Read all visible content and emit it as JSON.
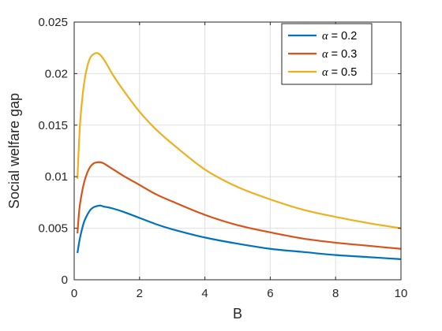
{
  "chart_data": {
    "type": "line",
    "xlabel": "B",
    "ylabel": "Social welfare gap",
    "xlim": [
      0,
      10
    ],
    "ylim": [
      0,
      0.025
    ],
    "xticks": [
      0,
      2,
      4,
      6,
      8,
      10
    ],
    "xtick_labels": [
      "0",
      "2",
      "4",
      "6",
      "8",
      "10"
    ],
    "yticks": [
      0,
      0.005,
      0.01,
      0.015,
      0.02,
      0.025
    ],
    "ytick_labels": [
      "0",
      "0.005",
      "0.01",
      "0.015",
      "0.02",
      "0.025"
    ],
    "grid": true,
    "legend_position": "top-right",
    "series": [
      {
        "name": "α = 0.2",
        "legend_symbol": "α",
        "legend_value": "= 0.2",
        "color": "#0072BD",
        "x": [
          0.1,
          0.15,
          0.2,
          0.3,
          0.4,
          0.5,
          0.6,
          0.7,
          0.8,
          0.9,
          1.0,
          1.2,
          1.5,
          2.0,
          2.5,
          3.0,
          4.0,
          5.0,
          6.0,
          7.0,
          8.0,
          9.0,
          10.0
        ],
        "y": [
          0.0026,
          0.0036,
          0.0044,
          0.0056,
          0.0063,
          0.0068,
          0.00705,
          0.00715,
          0.0072,
          0.0071,
          0.00705,
          0.0069,
          0.0066,
          0.006,
          0.0054,
          0.0049,
          0.0041,
          0.0035,
          0.003,
          0.0027,
          0.0024,
          0.0022,
          0.002
        ]
      },
      {
        "name": "α = 0.3",
        "legend_symbol": "α",
        "legend_value": "= 0.3",
        "color": "#D95319",
        "x": [
          0.1,
          0.15,
          0.2,
          0.3,
          0.4,
          0.5,
          0.6,
          0.7,
          0.8,
          0.9,
          1.0,
          1.2,
          1.5,
          2.0,
          2.5,
          3.0,
          4.0,
          5.0,
          6.0,
          7.0,
          8.0,
          9.0,
          10.0
        ],
        "y": [
          0.0045,
          0.0066,
          0.0078,
          0.0094,
          0.0104,
          0.011,
          0.0113,
          0.0114,
          0.0114,
          0.0113,
          0.0111,
          0.0107,
          0.0101,
          0.0092,
          0.0083,
          0.0076,
          0.0063,
          0.0053,
          0.0046,
          0.004,
          0.0036,
          0.0033,
          0.003
        ]
      },
      {
        "name": "α = 0.5",
        "legend_symbol": "α",
        "legend_value": "= 0.5",
        "color": "#EDB120",
        "x": [
          0.1,
          0.15,
          0.2,
          0.3,
          0.4,
          0.5,
          0.6,
          0.7,
          0.8,
          0.9,
          1.0,
          1.2,
          1.5,
          2.0,
          2.5,
          3.0,
          4.0,
          5.0,
          6.0,
          7.0,
          8.0,
          9.0,
          10.0
        ],
        "y": [
          0.0098,
          0.0135,
          0.016,
          0.019,
          0.0207,
          0.0216,
          0.0219,
          0.022,
          0.0218,
          0.0214,
          0.0209,
          0.0198,
          0.0184,
          0.0163,
          0.0146,
          0.0132,
          0.0107,
          0.009,
          0.0078,
          0.0068,
          0.0061,
          0.0055,
          0.005
        ]
      }
    ]
  }
}
